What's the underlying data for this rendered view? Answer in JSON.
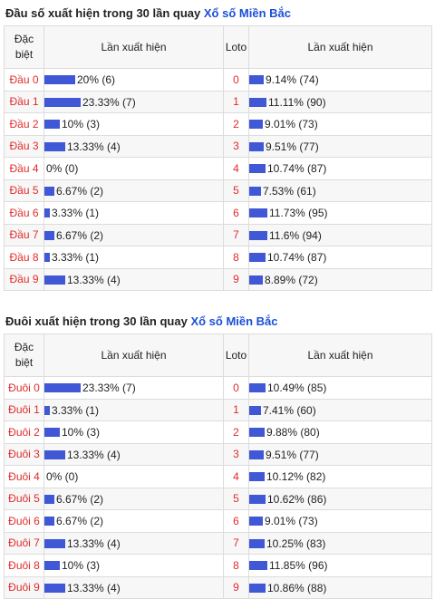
{
  "dau": {
    "title_prefix": "Đầu số xuất hiện trong 30 lần quay",
    "title_link": "Xổ số Miền Bắc",
    "headers": {
      "col1": "Đặc biệt",
      "col2": "Lần xuất hiện",
      "col3": "Loto",
      "col4": "Lần xuất hiện"
    },
    "rows": [
      {
        "label": "Đầu 0",
        "special_text": "20% (6)",
        "special_pct": 20,
        "num": "0",
        "loto_text": "9.14% (74)",
        "loto_pct": 9.14
      },
      {
        "label": "Đầu 1",
        "special_text": "23.33% (7)",
        "special_pct": 23.33,
        "num": "1",
        "loto_text": "11.11% (90)",
        "loto_pct": 11.11
      },
      {
        "label": "Đầu 2",
        "special_text": "10% (3)",
        "special_pct": 10,
        "num": "2",
        "loto_text": "9.01% (73)",
        "loto_pct": 9.01
      },
      {
        "label": "Đầu 3",
        "special_text": "13.33% (4)",
        "special_pct": 13.33,
        "num": "3",
        "loto_text": "9.51% (77)",
        "loto_pct": 9.51
      },
      {
        "label": "Đầu 4",
        "special_text": "0% (0)",
        "special_pct": 0,
        "num": "4",
        "loto_text": "10.74% (87)",
        "loto_pct": 10.74
      },
      {
        "label": "Đầu 5",
        "special_text": "6.67% (2)",
        "special_pct": 6.67,
        "num": "5",
        "loto_text": "7.53% (61)",
        "loto_pct": 7.53
      },
      {
        "label": "Đầu 6",
        "special_text": "3.33% (1)",
        "special_pct": 3.33,
        "num": "6",
        "loto_text": "11.73% (95)",
        "loto_pct": 11.73
      },
      {
        "label": "Đầu 7",
        "special_text": "6.67% (2)",
        "special_pct": 6.67,
        "num": "7",
        "loto_text": "11.6% (94)",
        "loto_pct": 11.6
      },
      {
        "label": "Đầu 8",
        "special_text": "3.33% (1)",
        "special_pct": 3.33,
        "num": "8",
        "loto_text": "10.74% (87)",
        "loto_pct": 10.74
      },
      {
        "label": "Đầu 9",
        "special_text": "13.33% (4)",
        "special_pct": 13.33,
        "num": "9",
        "loto_text": "8.89% (72)",
        "loto_pct": 8.89
      }
    ]
  },
  "duoi": {
    "title_prefix": "Đuôi xuất hiện trong 30 lần quay",
    "title_link": "Xổ số Miền Bắc",
    "headers": {
      "col1": "Đặc biệt",
      "col2": "Lần xuất hiện",
      "col3": "Loto",
      "col4": "Lần xuất hiện"
    },
    "rows": [
      {
        "label": "Đuôi 0",
        "special_text": "23.33% (7)",
        "special_pct": 23.33,
        "num": "0",
        "loto_text": "10.49% (85)",
        "loto_pct": 10.49
      },
      {
        "label": "Đuôi 1",
        "special_text": "3.33% (1)",
        "special_pct": 3.33,
        "num": "1",
        "loto_text": "7.41% (60)",
        "loto_pct": 7.41
      },
      {
        "label": "Đuôi 2",
        "special_text": "10% (3)",
        "special_pct": 10,
        "num": "2",
        "loto_text": "9.88% (80)",
        "loto_pct": 9.88
      },
      {
        "label": "Đuôi 3",
        "special_text": "13.33% (4)",
        "special_pct": 13.33,
        "num": "3",
        "loto_text": "9.51% (77)",
        "loto_pct": 9.51
      },
      {
        "label": "Đuôi 4",
        "special_text": "0% (0)",
        "special_pct": 0,
        "num": "4",
        "loto_text": "10.12% (82)",
        "loto_pct": 10.12
      },
      {
        "label": "Đuôi 5",
        "special_text": "6.67% (2)",
        "special_pct": 6.67,
        "num": "5",
        "loto_text": "10.62% (86)",
        "loto_pct": 10.62
      },
      {
        "label": "Đuôi 6",
        "special_text": "6.67% (2)",
        "special_pct": 6.67,
        "num": "6",
        "loto_text": "9.01% (73)",
        "loto_pct": 9.01
      },
      {
        "label": "Đuôi 7",
        "special_text": "13.33% (4)",
        "special_pct": 13.33,
        "num": "7",
        "loto_text": "10.25% (83)",
        "loto_pct": 10.25
      },
      {
        "label": "Đuôi 8",
        "special_text": "10% (3)",
        "special_pct": 10,
        "num": "8",
        "loto_text": "11.85% (96)",
        "loto_pct": 11.85
      },
      {
        "label": "Đuôi 9",
        "special_text": "13.33% (4)",
        "special_pct": 13.33,
        "num": "9",
        "loto_text": "10.86% (88)",
        "loto_pct": 10.86
      }
    ]
  },
  "colors": {
    "bar": "#4057d6",
    "label": "#e12b2b",
    "link": "#1a4fd8"
  }
}
